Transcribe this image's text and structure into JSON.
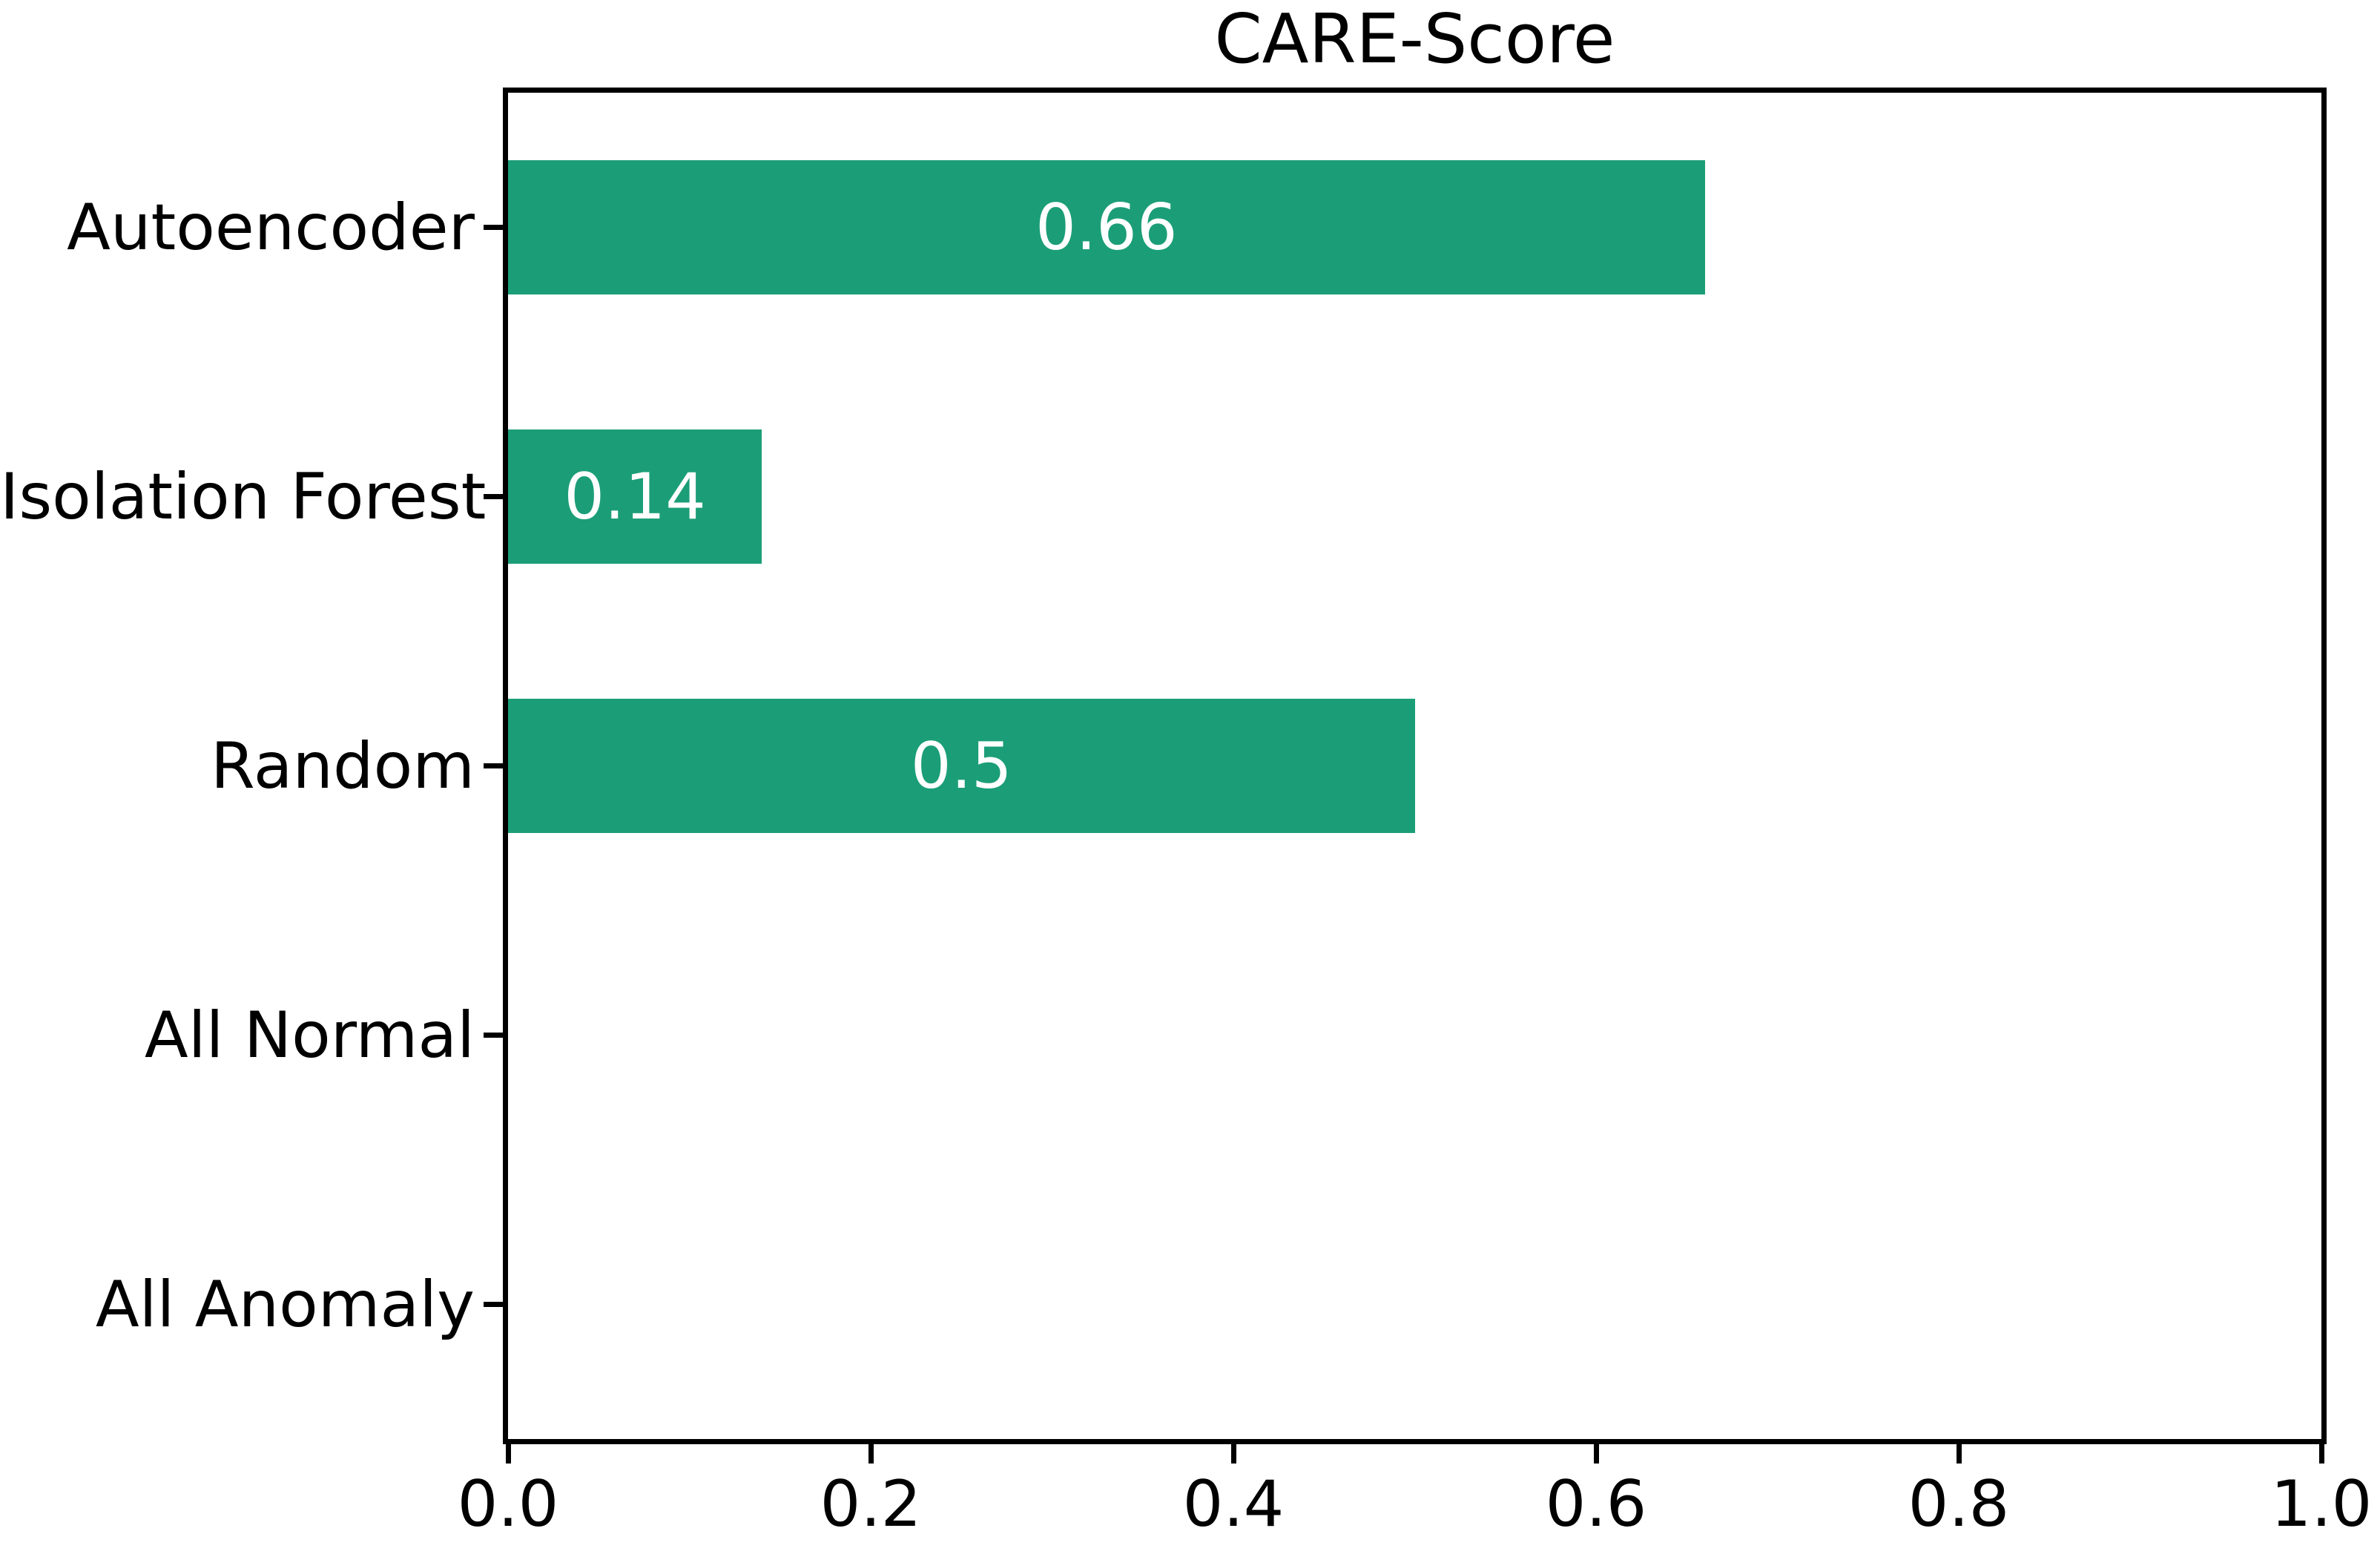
{
  "chart_data": {
    "type": "bar",
    "orientation": "horizontal",
    "title": "CARE-Score",
    "categories": [
      "Autoencoder",
      "Isolation Forest",
      "Random",
      "All Normal",
      "All Anomaly"
    ],
    "values": [
      0.66,
      0.14,
      0.5,
      0,
      0
    ],
    "bar_labels": [
      "0.66",
      "0.14",
      "0.5",
      "",
      ""
    ],
    "xlabel": "",
    "ylabel": "",
    "xlim": [
      0.0,
      1.0
    ],
    "xticks": [
      0.0,
      0.2,
      0.4,
      0.6,
      0.8,
      1.0
    ],
    "xtick_labels": [
      "0.0",
      "0.2",
      "0.4",
      "0.6",
      "0.8",
      "1.0"
    ],
    "grid": false,
    "legend": false,
    "bar_color": "#1b9e77",
    "bar_label_color": "#ffffff",
    "axis_color": "#000000",
    "text_color": "#000000",
    "bar_height_fraction": 0.5
  }
}
